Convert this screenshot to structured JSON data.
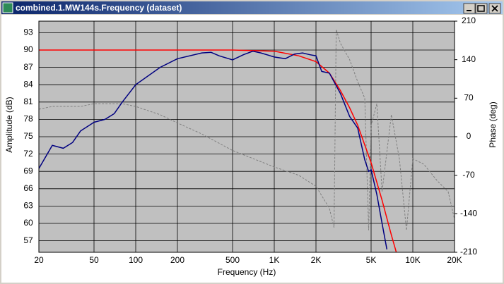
{
  "window_title": "combined.1.MW144s.Frequency (dataset)",
  "chart_data": {
    "type": "line",
    "xlabel": "Frequency (Hz)",
    "ylabel": "Amplitude (dB)",
    "y2label": "Phase (deg)",
    "xscale": "log",
    "grid": true,
    "background": "#c0c0c0",
    "xlim": [
      20,
      20000
    ],
    "xticks": [
      20,
      50,
      100,
      200,
      500,
      {
        "value": 1000,
        "label": "1K"
      },
      {
        "value": 2000,
        "label": "2K"
      },
      {
        "value": 5000,
        "label": "5K"
      },
      {
        "value": 10000,
        "label": "10K"
      },
      {
        "value": 20000,
        "label": "20K"
      }
    ],
    "ylim": [
      55,
      95
    ],
    "yticks": [
      57,
      60,
      63,
      66,
      69,
      72,
      75,
      78,
      81,
      84,
      87,
      90,
      93
    ],
    "y2lim": [
      -210,
      210
    ],
    "y2ticks": [
      -210,
      -140,
      -70,
      0,
      70,
      140,
      210
    ],
    "series": [
      {
        "color": "#808080",
        "dash": "dashed",
        "axis": "y2",
        "x": [
          20,
          25,
          40,
          50,
          80,
          100,
          150,
          200,
          300,
          500,
          1000,
          1500,
          2000,
          2500,
          2700,
          2800,
          3000,
          3500,
          4000,
          4500,
          4800,
          5000,
          5500,
          6000,
          7000,
          8000,
          9000,
          10000,
          12000,
          15000,
          18000,
          20000,
          20500
        ],
        "values": [
          50,
          55,
          55,
          60,
          60,
          55,
          40,
          25,
          5,
          -25,
          -55,
          -70,
          -90,
          -130,
          -165,
          195,
          170,
          140,
          100,
          70,
          -170,
          20,
          60,
          -100,
          40,
          -40,
          -170,
          -40,
          -50,
          -80,
          -100,
          -150,
          180
        ]
      },
      {
        "color": "#ff0000",
        "dash": "solid",
        "axis": "y",
        "x": [
          20,
          500,
          1000,
          1500,
          2000,
          2500,
          3000,
          3500,
          4000,
          5000,
          6000,
          7000,
          7600
        ],
        "values": [
          90,
          90,
          89.8,
          89,
          88,
          86,
          83,
          80,
          77,
          70.5,
          64,
          58,
          55
        ]
      },
      {
        "color": "#000080",
        "dash": "solid",
        "axis": "y",
        "x": [
          20,
          25,
          30,
          35,
          40,
          50,
          60,
          70,
          80,
          100,
          150,
          200,
          300,
          350,
          400,
          500,
          600,
          700,
          800,
          1000,
          1200,
          1400,
          1600,
          1800,
          2000,
          2200,
          2500,
          3000,
          3500,
          4000,
          4500,
          4800,
          5000,
          5500,
          6000,
          6500
        ],
        "values": [
          69.5,
          73.5,
          73,
          74,
          76,
          77.5,
          78,
          79,
          81,
          84,
          87,
          88.5,
          89.5,
          89.6,
          89,
          88.3,
          89.2,
          89.8,
          89.5,
          88.8,
          88.5,
          89.3,
          89.5,
          89.2,
          89,
          86.3,
          86,
          82.5,
          78.5,
          76.5,
          71,
          69,
          69.3,
          65,
          60,
          55.5
        ]
      }
    ]
  }
}
